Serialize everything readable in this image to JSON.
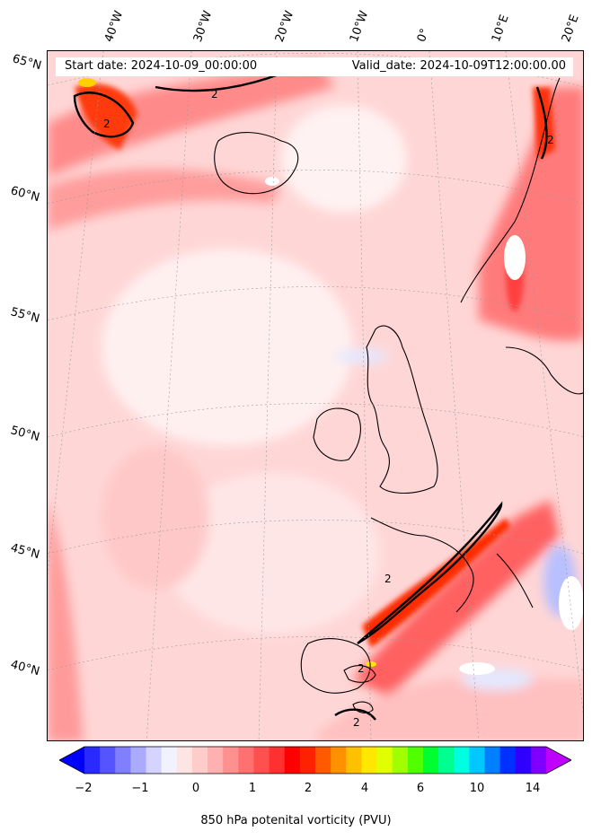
{
  "header": {
    "start_date": "Start date: 2024-10-09_00:00:00",
    "valid_date": "Valid_date: 2024-10-09T12:00:00.00"
  },
  "graticule": {
    "lat_labels": [
      "65°N",
      "60°N",
      "55°N",
      "50°N",
      "45°N",
      "40°N"
    ],
    "lon_labels": [
      "40°W",
      "30°W",
      "20°W",
      "10°W",
      "0°",
      "10°E",
      "20°E"
    ]
  },
  "contour_labels": [
    "2",
    "2",
    "2",
    "2",
    "2",
    "2"
  ],
  "colorbar": {
    "title": "850 hPa potenital vorticity (PVU)",
    "tick_labels": [
      "−2",
      "−1",
      "0",
      "1",
      "2",
      "4",
      "6",
      "10",
      "14"
    ],
    "colors": [
      "#0000ff",
      "#2a2aff",
      "#5555ff",
      "#7f7fff",
      "#aaaaff",
      "#d4d4ff",
      "#f2f2ff",
      "#ffe4e4",
      "#ffcccc",
      "#ffb0b0",
      "#ff9090",
      "#ff7070",
      "#ff5050",
      "#ff3030",
      "#ff0000",
      "#ff2200",
      "#ff5a00",
      "#ff9000",
      "#ffc000",
      "#ffe800",
      "#e0ff00",
      "#a0ff00",
      "#50ff00",
      "#00ff30",
      "#00ff90",
      "#00ffe0",
      "#00c8ff",
      "#0080ff",
      "#0030ff",
      "#3000ff",
      "#8000ff",
      "#c000ff"
    ]
  }
}
